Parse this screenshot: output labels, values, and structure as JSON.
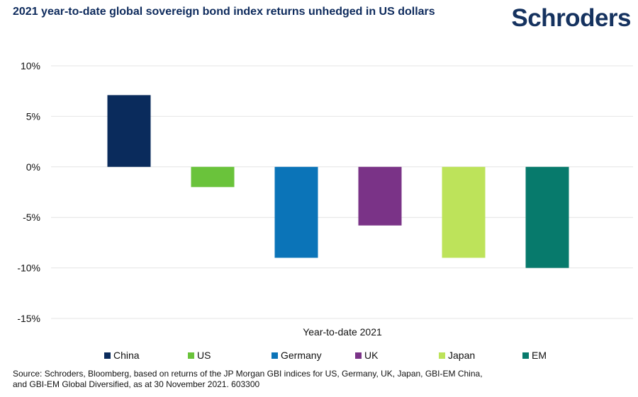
{
  "header": {
    "title": "2021 year-to-date global sovereign bond index returns unhedged in US dollars",
    "brand": "Schroders"
  },
  "chart_data": {
    "type": "bar",
    "title": "2021 year-to-date global sovereign bond index returns unhedged in US dollars",
    "xlabel": "Year-to-date 2021",
    "ylabel": "",
    "ylim": [
      -15,
      10
    ],
    "yticks": [
      10,
      5,
      0,
      -5,
      -10,
      -15
    ],
    "ytick_labels": [
      "10%",
      "5%",
      "0%",
      "-5%",
      "-10%",
      "-15%"
    ],
    "grid": true,
    "legend_position": "bottom",
    "categories": [
      "China",
      "US",
      "Germany",
      "UK",
      "Japan",
      "EM"
    ],
    "values": [
      7.1,
      -2.0,
      -9.0,
      -5.8,
      -9.0,
      -10.0
    ],
    "colors": [
      "#0a2b5c",
      "#6ac33b",
      "#0b74b8",
      "#7a3387",
      "#bde35a",
      "#077a6c"
    ]
  },
  "footer": {
    "source_line1": "Source: Schroders, Bloomberg, based on returns of the JP Morgan GBI indices for US, Germany, UK, Japan, GBI-EM China,",
    "source_line2": "and GBI-EM Global Diversified, as at 30 November 2021. 603300"
  }
}
